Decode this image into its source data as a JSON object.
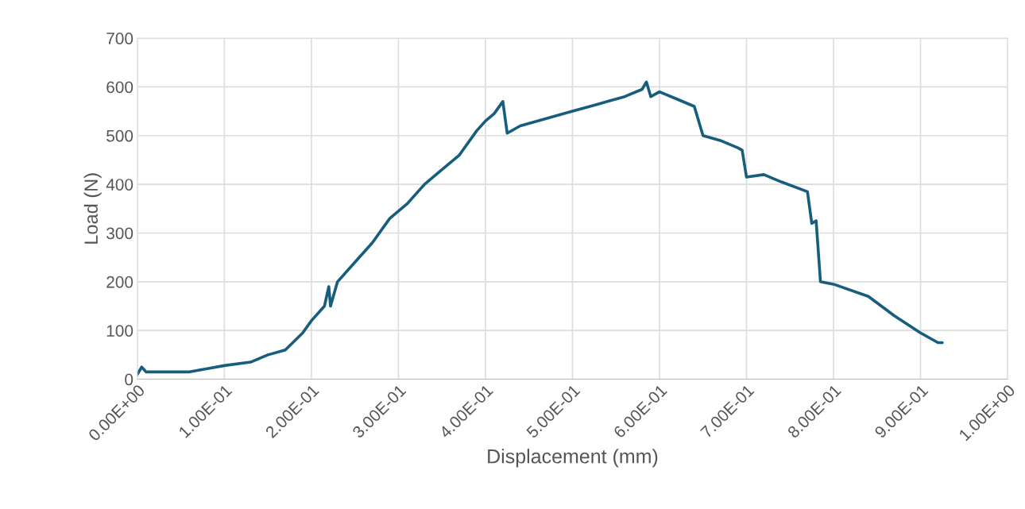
{
  "chart_data": {
    "type": "line",
    "xlabel": "Displacement (mm)",
    "ylabel": "Load (N)",
    "x": [
      0.0,
      0.005,
      0.01,
      0.03,
      0.06,
      0.1,
      0.13,
      0.15,
      0.17,
      0.19,
      0.2,
      0.215,
      0.22,
      0.222,
      0.23,
      0.25,
      0.27,
      0.29,
      0.31,
      0.33,
      0.35,
      0.37,
      0.39,
      0.4,
      0.41,
      0.42,
      0.425,
      0.44,
      0.47,
      0.5,
      0.53,
      0.56,
      0.58,
      0.585,
      0.59,
      0.6,
      0.62,
      0.64,
      0.65,
      0.67,
      0.69,
      0.695,
      0.7,
      0.72,
      0.74,
      0.77,
      0.775,
      0.78,
      0.785,
      0.8,
      0.84,
      0.87,
      0.9,
      0.92,
      0.925
    ],
    "series": [
      {
        "color": "#175e7c",
        "values": [
          10,
          25,
          15,
          15,
          15,
          28,
          35,
          50,
          60,
          95,
          120,
          150,
          190,
          150,
          200,
          240,
          280,
          330,
          360,
          400,
          430,
          460,
          510,
          530,
          545,
          570,
          505,
          520,
          535,
          550,
          565,
          580,
          595,
          610,
          580,
          590,
          575,
          560,
          500,
          490,
          475,
          470,
          415,
          420,
          405,
          385,
          320,
          325,
          200,
          195,
          170,
          130,
          95,
          75,
          75
        ]
      }
    ],
    "xlim": [
      0,
      1
    ],
    "ylim": [
      0,
      700
    ],
    "xticks": [
      {
        "value": 0,
        "label": "0.00E+00"
      },
      {
        "value": 0.1,
        "label": "1.00E-01"
      },
      {
        "value": 0.2,
        "label": "2.00E-01"
      },
      {
        "value": 0.3,
        "label": "3.00E-01"
      },
      {
        "value": 0.4,
        "label": "4.00E-01"
      },
      {
        "value": 0.5,
        "label": "5.00E-01"
      },
      {
        "value": 0.6,
        "label": "6.00E-01"
      },
      {
        "value": 0.7,
        "label": "7.00E-01"
      },
      {
        "value": 0.8,
        "label": "8.00E-01"
      },
      {
        "value": 0.9,
        "label": "9.00E-01"
      },
      {
        "value": 1,
        "label": "1.00E+00"
      }
    ],
    "yticks": [
      0,
      100,
      200,
      300,
      400,
      500,
      600,
      700
    ],
    "grid": true,
    "legend": false,
    "marker": "none",
    "line_style": "solid"
  }
}
